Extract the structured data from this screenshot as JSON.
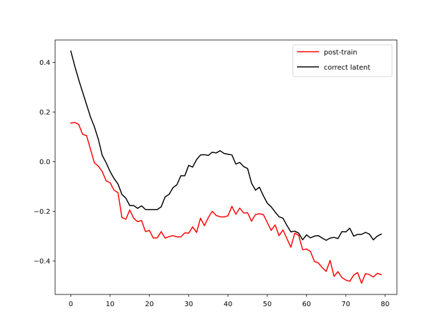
{
  "chart_data": {
    "type": "line",
    "xlim": [
      -4,
      83
    ],
    "ylim": [
      -0.535,
      0.49
    ],
    "xticks": [
      0,
      10,
      20,
      30,
      40,
      50,
      60,
      70,
      80
    ],
    "yticks": [
      -0.4,
      -0.2,
      0.0,
      0.2,
      0.4
    ],
    "ytick_labels": [
      "−0.4",
      "−0.2",
      "0.0",
      "0.2",
      "0.4"
    ],
    "grid": false,
    "legend": "top-right",
    "series": [
      {
        "name": "post-train",
        "color": "#ff0000",
        "values": [
          0.155,
          0.158,
          0.15,
          0.11,
          0.105,
          0.05,
          -0.005,
          -0.018,
          -0.04,
          -0.078,
          -0.085,
          -0.115,
          -0.125,
          -0.225,
          -0.232,
          -0.195,
          -0.228,
          -0.242,
          -0.237,
          -0.282,
          -0.277,
          -0.308,
          -0.307,
          -0.282,
          -0.308,
          -0.302,
          -0.298,
          -0.303,
          -0.303,
          -0.287,
          -0.288,
          -0.263,
          -0.285,
          -0.228,
          -0.258,
          -0.225,
          -0.2,
          -0.217,
          -0.222,
          -0.223,
          -0.218,
          -0.18,
          -0.212,
          -0.187,
          -0.207,
          -0.206,
          -0.24,
          -0.213,
          -0.21,
          -0.213,
          -0.245,
          -0.277,
          -0.255,
          -0.298,
          -0.275,
          -0.31,
          -0.345,
          -0.288,
          -0.297,
          -0.355,
          -0.352,
          -0.362,
          -0.402,
          -0.408,
          -0.427,
          -0.442,
          -0.398,
          -0.462,
          -0.443,
          -0.467,
          -0.477,
          -0.482,
          -0.457,
          -0.447,
          -0.49,
          -0.451,
          -0.455,
          -0.465,
          -0.45,
          -0.455
        ]
      },
      {
        "name": "correct latent",
        "color": "#000000",
        "values": [
          0.445,
          0.385,
          0.33,
          0.28,
          0.23,
          0.18,
          0.14,
          0.09,
          0.025,
          -0.005,
          -0.04,
          -0.068,
          -0.09,
          -0.132,
          -0.147,
          -0.177,
          -0.177,
          -0.188,
          -0.178,
          -0.193,
          -0.193,
          -0.193,
          -0.193,
          -0.182,
          -0.142,
          -0.132,
          -0.105,
          -0.093,
          -0.057,
          -0.057,
          -0.015,
          -0.022,
          0.008,
          0.027,
          0.028,
          0.025,
          0.038,
          0.035,
          0.044,
          0.033,
          0.03,
          0.027,
          -0.01,
          -0.003,
          -0.02,
          -0.028,
          -0.087,
          -0.115,
          -0.103,
          -0.137,
          -0.167,
          -0.182,
          -0.203,
          -0.222,
          -0.228,
          -0.257,
          -0.283,
          -0.28,
          -0.288,
          -0.315,
          -0.295,
          -0.307,
          -0.3,
          -0.298,
          -0.308,
          -0.317,
          -0.308,
          -0.305,
          -0.31,
          -0.282,
          -0.283,
          -0.268,
          -0.3,
          -0.293,
          -0.293,
          -0.285,
          -0.292,
          -0.315,
          -0.3,
          -0.292
        ]
      }
    ]
  }
}
